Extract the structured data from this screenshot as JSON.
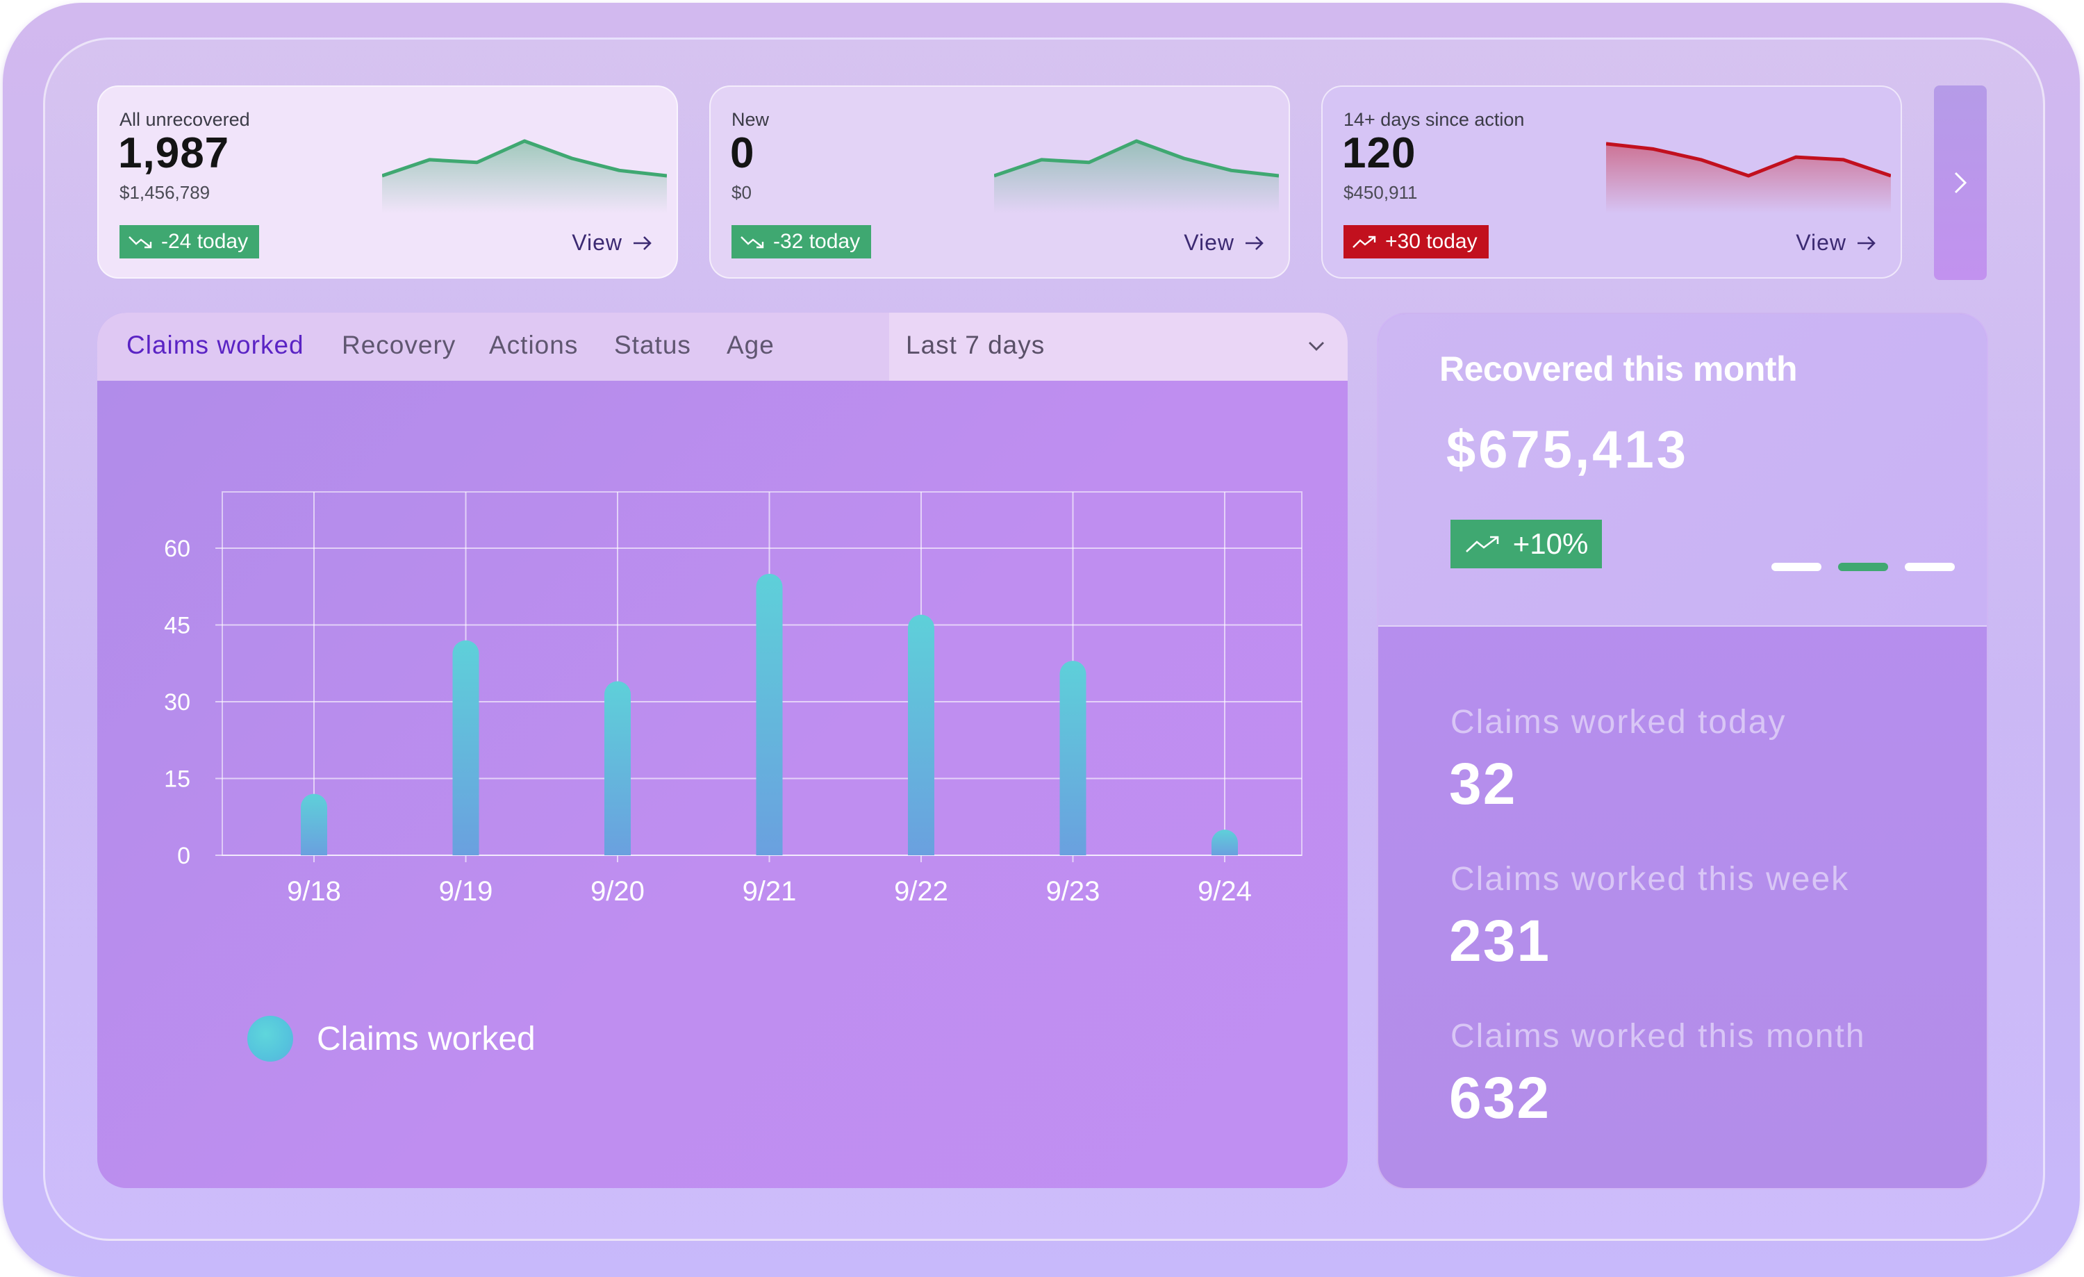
{
  "cards": [
    {
      "label": "All unrecovered",
      "value": "1,987",
      "amount": "$1,456,789",
      "badge": "-24 today",
      "trend": "down",
      "view": "View",
      "spark": [
        46,
        34,
        36,
        20,
        33,
        42,
        46
      ]
    },
    {
      "label": "New",
      "value": "0",
      "amount": "$0",
      "badge": "-32 today",
      "trend": "down",
      "view": "View",
      "spark": [
        46,
        34,
        36,
        20,
        33,
        42,
        46
      ]
    },
    {
      "label": "14+ days since action",
      "value": "120",
      "amount": "$450,911",
      "badge": "+30 today",
      "trend": "up",
      "view": "View",
      "spark": [
        22,
        26,
        34,
        46,
        32,
        34,
        46
      ]
    }
  ],
  "colors": {
    "green": "#3fa871",
    "red": "#c2101e",
    "accent": "#5a23c4",
    "bar_top": "#5ed0d9",
    "bar_bottom": "#6aa0df"
  },
  "icons": {
    "trend_down": "trend-down-icon",
    "trend_up": "trend-up-icon",
    "next": "chevron-right-icon",
    "dropdown": "chevron-down-icon",
    "view": "arrow-right-icon"
  },
  "tabs": [
    {
      "label": "Claims worked",
      "active": true
    },
    {
      "label": "Recovery",
      "active": false
    },
    {
      "label": "Actions",
      "active": false
    },
    {
      "label": "Status",
      "active": false
    },
    {
      "label": "Age",
      "active": false
    }
  ],
  "range": {
    "selected": "Last 7 days"
  },
  "chart_data": {
    "type": "bar",
    "categories": [
      "9/18",
      "9/19",
      "9/20",
      "9/21",
      "9/22",
      "9/23",
      "9/24"
    ],
    "series": [
      {
        "name": "Claims worked",
        "values": [
          12,
          42,
          34,
          55,
          47,
          38,
          5
        ]
      }
    ],
    "yticks": [
      0,
      15,
      30,
      45,
      60
    ],
    "ylim": [
      0,
      71
    ],
    "grid": true,
    "legend": "bottom-left"
  },
  "recovered": {
    "title": "Recovered this month",
    "amount": "$675,413",
    "badge": "+10%",
    "carousel_active": 1,
    "stats": [
      {
        "label": "Claims worked today",
        "value": "32"
      },
      {
        "label": "Claims worked this week",
        "value": "231"
      },
      {
        "label": "Claims worked this month",
        "value": "632"
      }
    ]
  }
}
